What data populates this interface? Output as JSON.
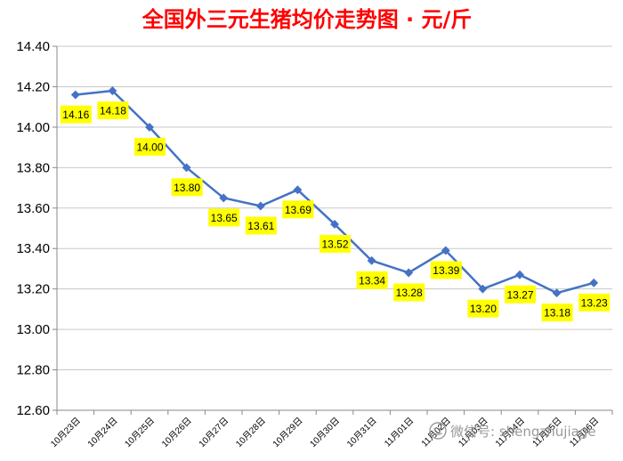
{
  "watermark": {
    "text": "微信号: shengzhujiage",
    "icon": "wechat-icon"
  },
  "colors": {
    "line": "#4472c4",
    "marker": "#4472c4",
    "label_bg": "#ffff00",
    "title": "#ff0000",
    "grid": "#c8c8c8"
  },
  "chart_data": {
    "type": "line",
    "title": "全国外三元生猪均价走势图 · 元/斤",
    "xlabel": "",
    "ylabel": "",
    "ylim": [
      12.6,
      14.4
    ],
    "ytick_step": 0.2,
    "grid": "horizontal",
    "legend": "none",
    "categories": [
      "10月23日",
      "10月24日",
      "10月25日",
      "10月26日",
      "10月27日",
      "10月28日",
      "10月29日",
      "10月30日",
      "10月31日",
      "11月01日",
      "11月02日",
      "11月03日",
      "11月04日",
      "11月05日",
      "11月06日"
    ],
    "series": [
      {
        "values": [
          14.16,
          14.18,
          14.0,
          13.8,
          13.65,
          13.61,
          13.69,
          13.52,
          13.34,
          13.28,
          13.39,
          13.2,
          13.27,
          13.18,
          13.23
        ],
        "labels": [
          "14.16",
          "14.18",
          "14.00",
          "13.80",
          "13.65",
          "13.61",
          "13.69",
          "13.52",
          "13.34",
          "13.28",
          "13.39",
          "13.20",
          "13.27",
          "13.18",
          "13.23"
        ]
      }
    ]
  }
}
